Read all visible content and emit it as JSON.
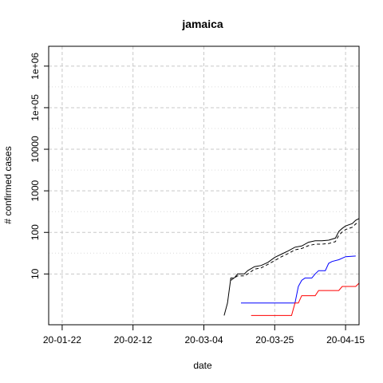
{
  "chart_data": {
    "type": "line",
    "title": "jamaica",
    "xlabel": "date",
    "ylabel": "# confirmed cases",
    "y_scale": "log",
    "ylim": [
      0.6,
      3000000
    ],
    "xlim": [
      "2020-01-18",
      "2020-04-19"
    ],
    "x_ticks": [
      {
        "date": "2020-01-22",
        "label": "20-01-22"
      },
      {
        "date": "2020-02-12",
        "label": "20-02-12"
      },
      {
        "date": "2020-03-04",
        "label": "20-03-04"
      },
      {
        "date": "2020-03-25",
        "label": "20-03-25"
      },
      {
        "date": "2020-04-15",
        "label": "20-04-15"
      }
    ],
    "y_ticks": [
      {
        "value": 10,
        "label": "10"
      },
      {
        "value": 100,
        "label": "100"
      },
      {
        "value": 1000,
        "label": "1000"
      },
      {
        "value": 10000,
        "label": "10000"
      },
      {
        "value": 100000,
        "label": "1e+05"
      },
      {
        "value": 1000000,
        "label": "1e+06"
      }
    ],
    "grid": true,
    "legend": "none",
    "series": [
      {
        "color": "#000000",
        "dash": "solid",
        "points": [
          [
            "2020-03-10",
            1
          ],
          [
            "2020-03-11",
            2
          ],
          [
            "2020-03-12",
            8
          ],
          [
            "2020-03-13",
            8
          ],
          [
            "2020-03-14",
            10
          ],
          [
            "2020-03-16",
            10
          ],
          [
            "2020-03-17",
            12
          ],
          [
            "2020-03-19",
            15
          ],
          [
            "2020-03-21",
            16
          ],
          [
            "2020-03-23",
            19
          ],
          [
            "2020-03-25",
            25
          ],
          [
            "2020-03-27",
            30
          ],
          [
            "2020-03-29",
            36
          ],
          [
            "2020-03-31",
            44
          ],
          [
            "2020-04-02",
            47
          ],
          [
            "2020-04-04",
            58
          ],
          [
            "2020-04-06",
            63
          ],
          [
            "2020-04-08",
            63
          ],
          [
            "2020-04-10",
            65
          ],
          [
            "2020-04-12",
            73
          ],
          [
            "2020-04-13",
            105
          ],
          [
            "2020-04-14",
            125
          ],
          [
            "2020-04-15",
            143
          ],
          [
            "2020-04-17",
            163
          ],
          [
            "2020-04-18",
            196
          ],
          [
            "2020-04-19",
            215
          ]
        ]
      },
      {
        "color": "#000000",
        "dash": "dashed",
        "points": [
          [
            "2020-03-12",
            7
          ],
          [
            "2020-03-13",
            8
          ],
          [
            "2020-03-14",
            9
          ],
          [
            "2020-03-16",
            9
          ],
          [
            "2020-03-17",
            10
          ],
          [
            "2020-03-19",
            13
          ],
          [
            "2020-03-21",
            14
          ],
          [
            "2020-03-23",
            17
          ],
          [
            "2020-03-25",
            21
          ],
          [
            "2020-03-27",
            26
          ],
          [
            "2020-03-29",
            31
          ],
          [
            "2020-03-31",
            38
          ],
          [
            "2020-04-02",
            41
          ],
          [
            "2020-04-04",
            48
          ],
          [
            "2020-04-06",
            52
          ],
          [
            "2020-04-08",
            52
          ],
          [
            "2020-04-10",
            54
          ],
          [
            "2020-04-12",
            60
          ],
          [
            "2020-04-13",
            85
          ],
          [
            "2020-04-14",
            102
          ],
          [
            "2020-04-15",
            117
          ],
          [
            "2020-04-17",
            133
          ],
          [
            "2020-04-18",
            160
          ],
          [
            "2020-04-19",
            175
          ]
        ]
      },
      {
        "color": "#0000ff",
        "dash": "solid",
        "points": [
          [
            "2020-03-15",
            2
          ],
          [
            "2020-03-31",
            2
          ],
          [
            "2020-04-01",
            5
          ],
          [
            "2020-04-02",
            7
          ],
          [
            "2020-04-03",
            8
          ],
          [
            "2020-04-05",
            8
          ],
          [
            "2020-04-06",
            10
          ],
          [
            "2020-04-07",
            12
          ],
          [
            "2020-04-09",
            12
          ],
          [
            "2020-04-10",
            18
          ],
          [
            "2020-04-11",
            20
          ],
          [
            "2020-04-13",
            22
          ],
          [
            "2020-04-15",
            26
          ],
          [
            "2020-04-18",
            27
          ]
        ]
      },
      {
        "color": "#ff0000",
        "dash": "solid",
        "points": [
          [
            "2020-03-18",
            1
          ],
          [
            "2020-03-30",
            1
          ],
          [
            "2020-03-31",
            2
          ],
          [
            "2020-04-01",
            2
          ],
          [
            "2020-04-02",
            3
          ],
          [
            "2020-04-06",
            3
          ],
          [
            "2020-04-07",
            4
          ],
          [
            "2020-04-13",
            4
          ],
          [
            "2020-04-14",
            5
          ],
          [
            "2020-04-18",
            5
          ],
          [
            "2020-04-19",
            6
          ]
        ]
      }
    ]
  }
}
